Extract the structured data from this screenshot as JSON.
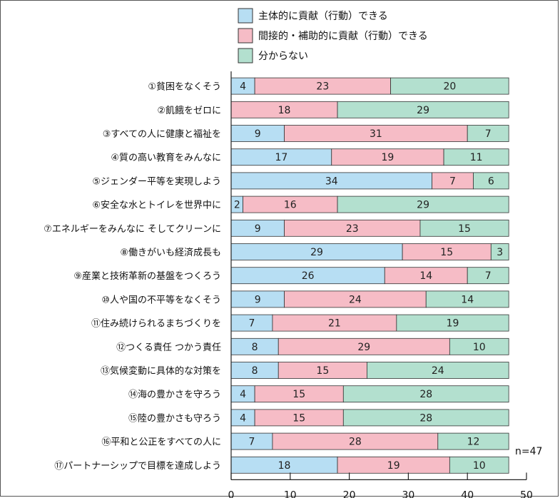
{
  "chart_data": {
    "type": "bar",
    "orientation": "horizontal",
    "stacked": true,
    "categories": [
      "①貧困をなくそう",
      "②飢餓をゼロに",
      "③すべての人に健康と福祉を",
      "④質の高い教育をみんなに",
      "⑤ジェンダー平等を実現しよう",
      "⑥安全な水とトイレを世界中に",
      "⑦エネルギーをみんなに そしてクリーンに",
      "⑧働きがいも経済成長も",
      "⑨産業と技術革新の基盤をつくろう",
      "⑩人や国の不平等をなくそう",
      "⑪住み続けられるまちづくりを",
      "⑫つくる責任 つかう責任",
      "⑬気候変動に具体的な対策を",
      "⑭海の豊かさを守ろう",
      "⑮陸の豊かさも守ろう",
      "⑯平和と公正をすべての人に",
      "⑰パートナーシップで目標を達成しよう"
    ],
    "series": [
      {
        "name": "主体的に貢献（行動）できる",
        "color": "#b7def3",
        "values": [
          4,
          0,
          9,
          17,
          34,
          2,
          9,
          29,
          26,
          9,
          7,
          8,
          8,
          4,
          4,
          7,
          18
        ]
      },
      {
        "name": "間接的・補助的に貢献（行動）できる",
        "color": "#f6bcc6",
        "values": [
          23,
          18,
          31,
          19,
          7,
          16,
          23,
          15,
          14,
          24,
          21,
          29,
          15,
          15,
          15,
          28,
          19
        ]
      },
      {
        "name": "分からない",
        "color": "#b3e0cf",
        "values": [
          20,
          29,
          7,
          11,
          6,
          29,
          15,
          3,
          7,
          14,
          19,
          10,
          24,
          28,
          28,
          12,
          10
        ]
      }
    ],
    "xlim": [
      0,
      50
    ],
    "xticks": [
      0,
      10,
      20,
      30,
      40,
      50
    ],
    "legend": "top",
    "annotation": "n=47"
  }
}
